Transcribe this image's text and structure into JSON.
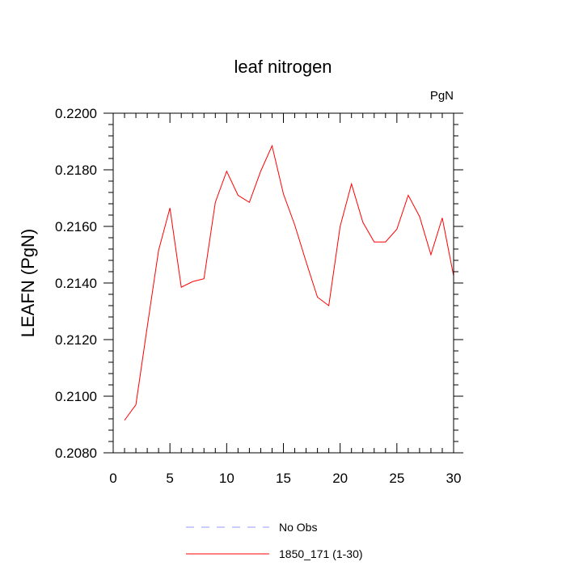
{
  "chart_data": {
    "type": "line",
    "title": "leaf nitrogen",
    "units_label": "PgN",
    "xlabel": "",
    "ylabel": "LEAFN  (PgN)",
    "xlim": [
      0,
      30
    ],
    "ylim": [
      0.208,
      0.22
    ],
    "x_ticks": [
      0,
      5,
      10,
      15,
      20,
      25,
      30
    ],
    "x_tick_labels": [
      "0",
      "5",
      "10",
      "15",
      "20",
      "25",
      "30"
    ],
    "y_ticks": [
      0.208,
      0.21,
      0.212,
      0.214,
      0.216,
      0.218,
      0.22
    ],
    "y_tick_labels": [
      "0.2080",
      "0.2100",
      "0.2120",
      "0.2140",
      "0.2160",
      "0.2180",
      "0.2200"
    ],
    "grid": false,
    "legend_position": "bottom",
    "series": [
      {
        "name": "1850_171 (1-30)",
        "color": "#ff0000",
        "x": [
          1,
          2,
          3,
          4,
          5,
          6,
          7,
          8,
          9,
          10,
          11,
          12,
          13,
          14,
          15,
          16,
          17,
          18,
          19,
          20,
          21,
          22,
          23,
          24,
          25,
          26,
          27,
          28,
          29,
          30
        ],
        "y": [
          0.20915,
          0.2097,
          0.21245,
          0.21515,
          0.21665,
          0.21385,
          0.21405,
          0.21415,
          0.21685,
          0.21795,
          0.2171,
          0.21685,
          0.21795,
          0.21885,
          0.21715,
          0.21605,
          0.21475,
          0.2135,
          0.2132,
          0.216,
          0.2175,
          0.21615,
          0.21545,
          0.21545,
          0.2159,
          0.2171,
          0.21635,
          0.215,
          0.2163,
          0.21425
        ]
      }
    ],
    "legend": [
      {
        "label": "No Obs",
        "color": "#9999ff",
        "style": "dashed"
      },
      {
        "label": "1850_171 (1-30)",
        "color": "#ff0000",
        "style": "solid"
      }
    ]
  }
}
